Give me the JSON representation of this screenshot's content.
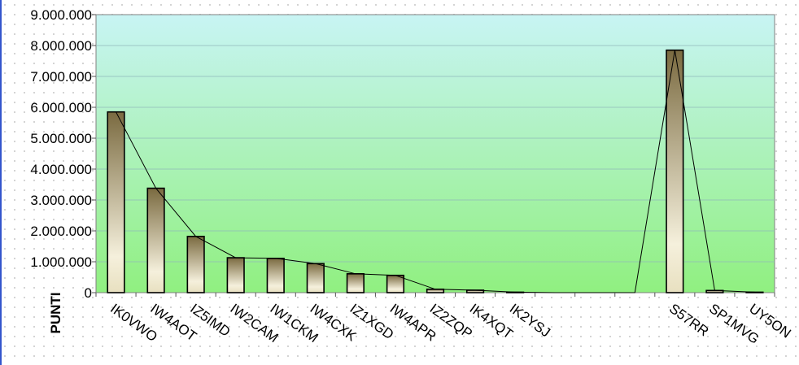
{
  "chart_data": {
    "type": "bar",
    "title": "",
    "xlabel": "",
    "ylabel": "PUNTI",
    "ylim": [
      0,
      9000000
    ],
    "y_ticks": [
      "9.000.000",
      "8.000.000",
      "7.000.000",
      "6.000.000",
      "5.000.000",
      "4.000.000",
      "3.000.000",
      "2.000.000",
      "1.000.000",
      "0"
    ],
    "grid": true,
    "legend": "none",
    "categories": [
      "IK0VWO",
      "IW4AOT",
      "IZ5IMD",
      "IW2CAM",
      "IW1CKM",
      "IW4CXK",
      "IZ1XGD",
      "IW4APR",
      "IZ2ZQP",
      "IK4XQT",
      "IK2YSJ",
      "",
      "",
      "",
      "S57RR",
      "SP1MVG",
      "UY5ON"
    ],
    "values": [
      5850000,
      3380000,
      1820000,
      1130000,
      1110000,
      940000,
      610000,
      560000,
      110000,
      80000,
      15000,
      0,
      0,
      0,
      7850000,
      70000,
      15000
    ],
    "overlay_line": true,
    "colors": {
      "bar_dark": "#7a6a40",
      "bar_light": "#f5f0dc",
      "bar_border": "#000000",
      "plot_top": "#c8f4f4",
      "plot_bottom": "#90f080",
      "line": "#000000"
    }
  }
}
